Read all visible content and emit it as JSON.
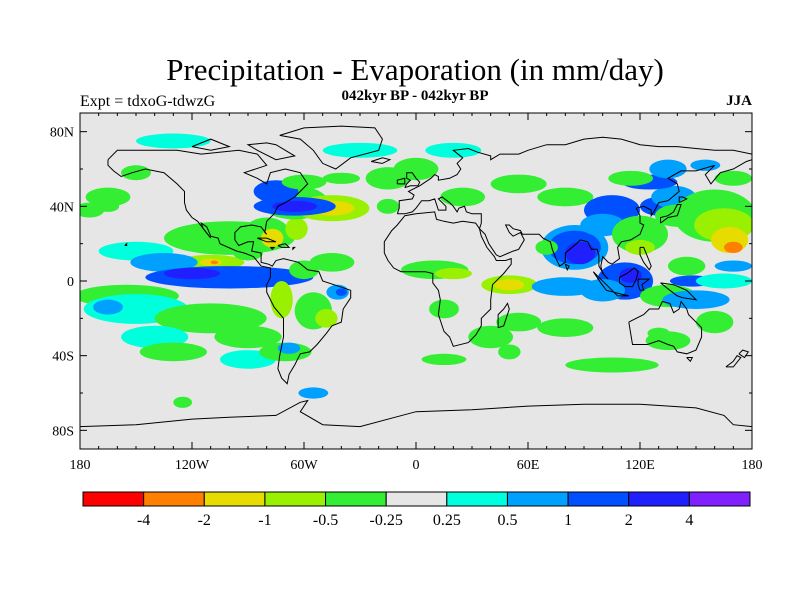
{
  "header": {
    "title": "Precipitation - Evaporation (in mm/day)",
    "subtitle": "042kyr BP - 042kyr BP",
    "left_label": "Expt = tdxoG-tdwzG",
    "right_label": "JJA"
  },
  "map": {
    "background_color": "#e6e6e6",
    "coastline_color": "#000000",
    "lon_range": [
      -180,
      180
    ],
    "lat_range": [
      -90,
      90
    ],
    "x_ticks": [
      {
        "lon": -180,
        "label": "180"
      },
      {
        "lon": -120,
        "label": "120W"
      },
      {
        "lon": -60,
        "label": "60W"
      },
      {
        "lon": 0,
        "label": "0"
      },
      {
        "lon": 60,
        "label": "60E"
      },
      {
        "lon": 120,
        "label": "120E"
      },
      {
        "lon": 180,
        "label": "180"
      }
    ],
    "y_ticks": [
      {
        "lat": 80,
        "label": "80N"
      },
      {
        "lat": 40,
        "label": "40N"
      },
      {
        "lat": 0,
        "label": "0"
      },
      {
        "lat": -40,
        "label": "40S"
      },
      {
        "lat": -80,
        "label": "80S"
      }
    ]
  },
  "colorbar": {
    "colors": [
      "#ff0000",
      "#ff7f00",
      "#e6dc00",
      "#99f000",
      "#33ee33",
      "#e6e6e6",
      "#00ffdd",
      "#00a0ff",
      "#0050ff",
      "#2020ff",
      "#8020ff"
    ],
    "labels": [
      "-4",
      "-2",
      "-1",
      "-0.5",
      "-0.25",
      "0.25",
      "0.5",
      "1",
      "2",
      "4"
    ]
  },
  "shapes": [
    {
      "c": 4,
      "lon": -100,
      "lat": 23,
      "rx": 35,
      "ry": 9
    },
    {
      "c": 3,
      "lon": -110,
      "lat": 10,
      "rx": 18,
      "ry": 4
    },
    {
      "c": 2,
      "lon": -110,
      "lat": 10,
      "rx": 6,
      "ry": 2
    },
    {
      "c": 1,
      "lon": -108,
      "lat": 10,
      "rx": 2,
      "ry": 1
    },
    {
      "c": 6,
      "lon": -150,
      "lat": 16,
      "rx": 20,
      "ry": 5
    },
    {
      "c": 7,
      "lon": -135,
      "lat": 10,
      "rx": 18,
      "ry": 5
    },
    {
      "c": 8,
      "lon": -100,
      "lat": 2,
      "rx": 45,
      "ry": 6
    },
    {
      "c": 9,
      "lon": -120,
      "lat": 4,
      "rx": 15,
      "ry": 3
    },
    {
      "c": 4,
      "lon": -155,
      "lat": -8,
      "rx": 28,
      "ry": 6
    },
    {
      "c": 6,
      "lon": -150,
      "lat": -15,
      "rx": 28,
      "ry": 8
    },
    {
      "c": 7,
      "lon": -165,
      "lat": -14,
      "rx": 8,
      "ry": 4
    },
    {
      "c": 4,
      "lon": -110,
      "lat": -20,
      "rx": 30,
      "ry": 8
    },
    {
      "c": 6,
      "lon": -140,
      "lat": -30,
      "rx": 18,
      "ry": 6
    },
    {
      "c": 4,
      "lon": -130,
      "lat": -38,
      "rx": 18,
      "ry": 5
    },
    {
      "c": 4,
      "lon": -90,
      "lat": -30,
      "rx": 18,
      "ry": 6
    },
    {
      "c": 6,
      "lon": -90,
      "lat": -42,
      "rx": 15,
      "ry": 5
    },
    {
      "c": 4,
      "lon": -70,
      "lat": -38,
      "rx": 14,
      "ry": 5
    },
    {
      "c": 7,
      "lon": -68,
      "lat": -36,
      "rx": 6,
      "ry": 3
    },
    {
      "c": 3,
      "lon": -72,
      "lat": -10,
      "rx": 6,
      "ry": 10
    },
    {
      "c": 4,
      "lon": -55,
      "lat": -16,
      "rx": 10,
      "ry": 10
    },
    {
      "c": 3,
      "lon": -48,
      "lat": -20,
      "rx": 6,
      "ry": 5
    },
    {
      "c": 7,
      "lon": -42,
      "lat": -6,
      "rx": 6,
      "ry": 4
    },
    {
      "c": 8,
      "lon": -40,
      "lat": -6,
      "rx": 3,
      "ry": 2
    },
    {
      "c": 4,
      "lon": -45,
      "lat": 10,
      "rx": 12,
      "ry": 5
    },
    {
      "c": 4,
      "lon": -60,
      "lat": 6,
      "rx": 8,
      "ry": 5
    },
    {
      "c": 4,
      "lon": -80,
      "lat": 26,
      "rx": 12,
      "ry": 8
    },
    {
      "c": 2,
      "lon": -77,
      "lat": 23,
      "rx": 6,
      "ry": 5
    },
    {
      "c": 3,
      "lon": -64,
      "lat": 28,
      "rx": 6,
      "ry": 6
    },
    {
      "c": 4,
      "lon": -90,
      "lat": 15,
      "rx": 8,
      "ry": 4
    },
    {
      "c": 4,
      "lon": -65,
      "lat": 42,
      "rx": 18,
      "ry": 9
    },
    {
      "c": 3,
      "lon": -45,
      "lat": 39,
      "rx": 20,
      "ry": 7
    },
    {
      "c": 2,
      "lon": -45,
      "lat": 39,
      "rx": 12,
      "ry": 4
    },
    {
      "c": 8,
      "lon": -65,
      "lat": 40,
      "rx": 22,
      "ry": 5
    },
    {
      "c": 9,
      "lon": -65,
      "lat": 40,
      "rx": 12,
      "ry": 3
    },
    {
      "c": 8,
      "lon": -75,
      "lat": 48,
      "rx": 12,
      "ry": 6
    },
    {
      "c": 4,
      "lon": -60,
      "lat": 53,
      "rx": 12,
      "ry": 4
    },
    {
      "c": 4,
      "lon": -165,
      "lat": 45,
      "rx": 12,
      "ry": 5
    },
    {
      "c": 4,
      "lon": -150,
      "lat": 58,
      "rx": 8,
      "ry": 4
    },
    {
      "c": 4,
      "lon": -175,
      "lat": 38,
      "rx": 8,
      "ry": 4
    },
    {
      "c": 4,
      "lon": -40,
      "lat": 55,
      "rx": 10,
      "ry": 3
    },
    {
      "c": 4,
      "lon": -15,
      "lat": 55,
      "rx": 12,
      "ry": 6
    },
    {
      "c": 4,
      "lon": -15,
      "lat": 40,
      "rx": 6,
      "ry": 4
    },
    {
      "c": 6,
      "lon": -30,
      "lat": 70,
      "rx": 20,
      "ry": 4
    },
    {
      "c": 6,
      "lon": -130,
      "lat": 75,
      "rx": 20,
      "ry": 4
    },
    {
      "c": 6,
      "lon": 20,
      "lat": 70,
      "rx": 15,
      "ry": 4
    },
    {
      "c": 4,
      "lon": 0,
      "lat": 60,
      "rx": 12,
      "ry": 6
    },
    {
      "c": 4,
      "lon": 25,
      "lat": 45,
      "rx": 12,
      "ry": 5
    },
    {
      "c": 4,
      "lon": 55,
      "lat": 52,
      "rx": 15,
      "ry": 5
    },
    {
      "c": 4,
      "lon": 80,
      "lat": 45,
      "rx": 15,
      "ry": 5
    },
    {
      "c": 4,
      "lon": 10,
      "lat": 6,
      "rx": 18,
      "ry": 5
    },
    {
      "c": 3,
      "lon": 20,
      "lat": 4,
      "rx": 10,
      "ry": 3
    },
    {
      "c": 4,
      "lon": 15,
      "lat": -15,
      "rx": 8,
      "ry": 5
    },
    {
      "c": 4,
      "lon": 40,
      "lat": -30,
      "rx": 12,
      "ry": 6
    },
    {
      "c": 4,
      "lon": 15,
      "lat": -42,
      "rx": 12,
      "ry": 3
    },
    {
      "c": 4,
      "lon": 55,
      "lat": -22,
      "rx": 12,
      "ry": 5
    },
    {
      "c": 3,
      "lon": 50,
      "lat": -2,
      "rx": 15,
      "ry": 5
    },
    {
      "c": 2,
      "lon": 50,
      "lat": -2,
      "rx": 8,
      "ry": 3
    },
    {
      "c": 4,
      "lon": 50,
      "lat": -38,
      "rx": 6,
      "ry": 4
    },
    {
      "c": 4,
      "lon": 80,
      "lat": -25,
      "rx": 15,
      "ry": 5
    },
    {
      "c": 4,
      "lon": 105,
      "lat": -45,
      "rx": 25,
      "ry": 4
    },
    {
      "c": 7,
      "lon": 85,
      "lat": 18,
      "rx": 18,
      "ry": 12
    },
    {
      "c": 8,
      "lon": 85,
      "lat": 18,
      "rx": 14,
      "ry": 9
    },
    {
      "c": 9,
      "lon": 88,
      "lat": 15,
      "rx": 8,
      "ry": 6
    },
    {
      "c": 4,
      "lon": 70,
      "lat": 18,
      "rx": 6,
      "ry": 4
    },
    {
      "c": 7,
      "lon": 80,
      "lat": -3,
      "rx": 18,
      "ry": 5
    },
    {
      "c": 8,
      "lon": 112,
      "lat": 0,
      "rx": 15,
      "ry": 10
    },
    {
      "c": 9,
      "lon": 115,
      "lat": 3,
      "rx": 6,
      "ry": 4
    },
    {
      "c": 7,
      "lon": 100,
      "lat": -5,
      "rx": 12,
      "ry": 6
    },
    {
      "c": 4,
      "lon": 135,
      "lat": -8,
      "rx": 15,
      "ry": 6
    },
    {
      "c": 4,
      "lon": 145,
      "lat": 8,
      "rx": 10,
      "ry": 5
    },
    {
      "c": 8,
      "lon": 105,
      "lat": 38,
      "rx": 15,
      "ry": 8
    },
    {
      "c": 7,
      "lon": 100,
      "lat": 30,
      "rx": 12,
      "ry": 6
    },
    {
      "c": 4,
      "lon": 120,
      "lat": 25,
      "rx": 15,
      "ry": 10
    },
    {
      "c": 3,
      "lon": 120,
      "lat": 18,
      "rx": 8,
      "ry": 4
    },
    {
      "c": 8,
      "lon": 130,
      "lat": 40,
      "rx": 10,
      "ry": 5
    },
    {
      "c": 7,
      "lon": 138,
      "lat": 45,
      "rx": 12,
      "ry": 6
    },
    {
      "c": 4,
      "lon": 140,
      "lat": 35,
      "rx": 12,
      "ry": 6
    },
    {
      "c": 8,
      "lon": 125,
      "lat": 53,
      "rx": 15,
      "ry": 4
    },
    {
      "c": 4,
      "lon": 115,
      "lat": 55,
      "rx": 12,
      "ry": 4
    },
    {
      "c": 7,
      "lon": 135,
      "lat": 60,
      "rx": 10,
      "ry": 5
    },
    {
      "c": 4,
      "lon": 160,
      "lat": 35,
      "rx": 22,
      "ry": 14
    },
    {
      "c": 3,
      "lon": 165,
      "lat": 30,
      "rx": 16,
      "ry": 9
    },
    {
      "c": 2,
      "lon": 168,
      "lat": 22,
      "rx": 10,
      "ry": 7
    },
    {
      "c": 1,
      "lon": 170,
      "lat": 18,
      "rx": 5,
      "ry": 3
    },
    {
      "c": 4,
      "lon": 170,
      "lat": 55,
      "rx": 10,
      "ry": 4
    },
    {
      "c": 7,
      "lon": 155,
      "lat": 62,
      "rx": 8,
      "ry": 3
    },
    {
      "c": 8,
      "lon": 148,
      "lat": 0,
      "rx": 12,
      "ry": 3
    },
    {
      "c": 7,
      "lon": 150,
      "lat": -10,
      "rx": 18,
      "ry": 5
    },
    {
      "c": 6,
      "lon": 165,
      "lat": 0,
      "rx": 15,
      "ry": 4
    },
    {
      "c": 4,
      "lon": 160,
      "lat": -22,
      "rx": 10,
      "ry": 6
    },
    {
      "c": 4,
      "lon": 135,
      "lat": -32,
      "rx": 12,
      "ry": 5
    },
    {
      "c": 4,
      "lon": 130,
      "lat": -28,
      "rx": 6,
      "ry": 3
    },
    {
      "c": 7,
      "lon": 170,
      "lat": 8,
      "rx": 10,
      "ry": 3
    },
    {
      "c": 4,
      "lon": -125,
      "lat": -65,
      "rx": 5,
      "ry": 3
    },
    {
      "c": 7,
      "lon": -55,
      "lat": -60,
      "rx": 8,
      "ry": 3
    },
    {
      "c": 4,
      "lon": -165,
      "lat": 40,
      "rx": 6,
      "ry": 3
    }
  ]
}
